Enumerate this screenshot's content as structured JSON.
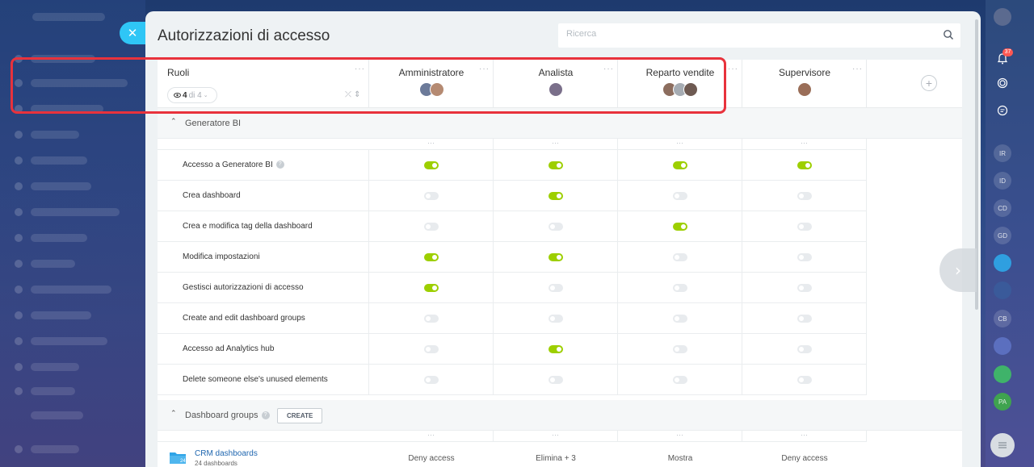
{
  "panel": {
    "title": "Autorizzazioni di accesso",
    "search_placeholder": "Ricerca"
  },
  "header": {
    "roles_label": "Ruoli",
    "roles_count": "4",
    "roles_of": "di 4",
    "roles": [
      {
        "name": "Amministratore",
        "avatars": 2
      },
      {
        "name": "Analista",
        "avatars": 1
      },
      {
        "name": "Reparto vendite",
        "avatars": 3
      },
      {
        "name": "Supervisore",
        "avatars": 1
      }
    ]
  },
  "sections": [
    {
      "title": "Generatore BI",
      "rows": [
        {
          "label": "Accesso a Generatore BI",
          "help": true,
          "values": [
            true,
            true,
            true,
            true
          ]
        },
        {
          "label": "Crea dashboard",
          "values": [
            false,
            true,
            false,
            false
          ]
        },
        {
          "label": "Crea e modifica tag della dashboard",
          "values": [
            false,
            false,
            true,
            false
          ]
        },
        {
          "label": "Modifica impostazioni",
          "values": [
            true,
            true,
            false,
            false
          ]
        },
        {
          "label": "Gestisci autorizzazioni di accesso",
          "values": [
            true,
            false,
            false,
            false
          ]
        },
        {
          "label": "Create and edit dashboard groups",
          "values": [
            false,
            false,
            false,
            false
          ]
        },
        {
          "label": "Accesso ad Analytics hub",
          "values": [
            false,
            true,
            false,
            false
          ]
        },
        {
          "label": "Delete someone else's unused elements",
          "values": [
            false,
            false,
            false,
            false
          ]
        }
      ]
    },
    {
      "title": "Dashboard groups",
      "create_label": "CREATE",
      "group": {
        "title": "CRM dashboards",
        "subtitle": "24 dashboards",
        "folder_number": "24",
        "values": [
          "Deny access",
          "Elimina + 3",
          "Mostra",
          "Deny access"
        ]
      }
    }
  ],
  "right_bar": {
    "notification_count": "37",
    "users": [
      "IR",
      "ID",
      "CD",
      "GD",
      "CB",
      "PA"
    ]
  },
  "colors": {
    "toggle_on": "#9dcf00",
    "toggle_off": "#e8ebee",
    "highlight": "#e8323c",
    "close_button": "#2fc6f6",
    "link": "#2067b0"
  }
}
